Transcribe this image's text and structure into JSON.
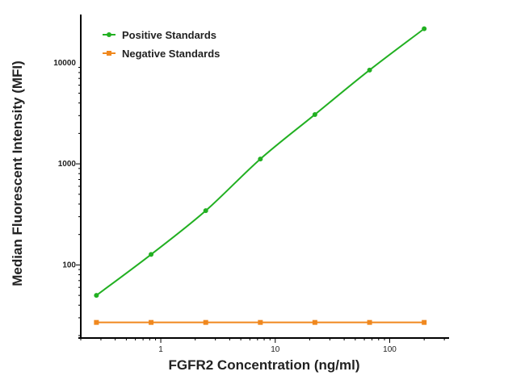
{
  "chart_data": {
    "type": "line",
    "title": "",
    "xlabel": "FGFR2 Concentration (ng/ml)",
    "ylabel": "Median Fluorescent Intensity (MFI)",
    "x_scale": "log",
    "y_scale": "log",
    "xlim": [
      0.2,
      330
    ],
    "ylim": [
      20,
      30000
    ],
    "x_ticks": [
      {
        "value": 1,
        "label": "1"
      },
      {
        "value": 10,
        "label": "10"
      },
      {
        "value": 100,
        "label": "100"
      }
    ],
    "y_ticks": [
      {
        "value": 100,
        "label": "100"
      },
      {
        "value": 1000,
        "label": "1000"
      },
      {
        "value": 10000,
        "label": "10000"
      }
    ],
    "grid": false,
    "legend_position": "top-left",
    "x": [
      0.274,
      0.823,
      2.47,
      7.41,
      22.2,
      66.7,
      200
    ],
    "series": [
      {
        "name": "Positive Standards",
        "color": "#22b022",
        "marker": "circle",
        "values": [
          50,
          127,
          344,
          1117,
          3076,
          8470,
          21700
        ]
      },
      {
        "name": "Negative Standards",
        "color": "#f0881e",
        "marker": "square",
        "values": [
          27,
          27,
          27,
          27,
          27,
          27,
          27
        ]
      }
    ]
  }
}
